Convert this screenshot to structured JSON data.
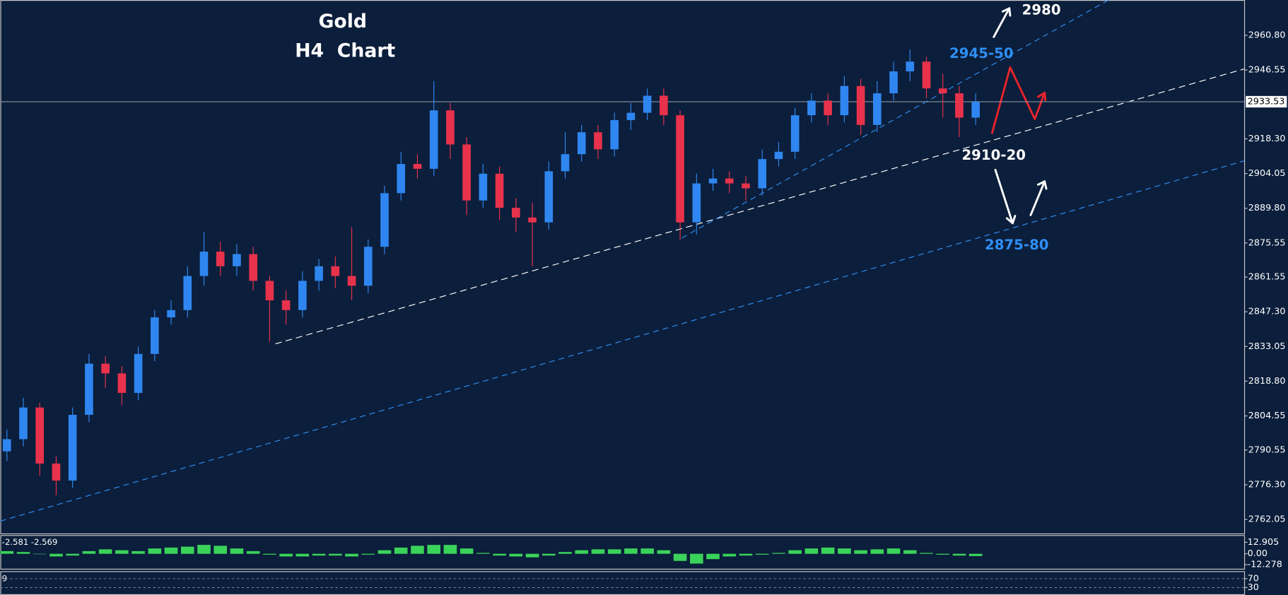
{
  "chart_data": {
    "type": "candlestick",
    "title": "Gold",
    "subtitle": "H4  Chart",
    "up_color": "#2f86f0",
    "down_color": "#e8324c",
    "open": [
      2790,
      2795,
      2808,
      2785,
      2778,
      2805,
      2826,
      2822,
      2814,
      2830,
      2845,
      2848,
      2862,
      2872,
      2866,
      2871,
      2860,
      2852,
      2848,
      2860,
      2866,
      2862,
      2858,
      2874,
      2896,
      2908,
      2906,
      2930,
      2916,
      2893,
      2904,
      2890,
      2886,
      2884,
      2905,
      2912,
      2921,
      2914,
      2926,
      2929,
      2936,
      2928,
      2884,
      2900,
      2902,
      2900,
      2898,
      2910,
      2913,
      2928,
      2934,
      2928,
      2940,
      2924,
      2937,
      2946,
      2950,
      2939,
      2937,
      2927
    ],
    "high": [
      2799,
      2812,
      2810,
      2788,
      2808,
      2830,
      2829,
      2825,
      2833,
      2848,
      2852,
      2866,
      2880,
      2876,
      2875,
      2874,
      2862,
      2856,
      2864,
      2869,
      2870,
      2882,
      2877,
      2899,
      2913,
      2912,
      2942,
      2933,
      2919,
      2908,
      2907,
      2894,
      2892,
      2909,
      2921,
      2924,
      2924,
      2929,
      2933,
      2939,
      2939,
      2930,
      2904,
      2906,
      2905,
      2903,
      2914,
      2917,
      2931,
      2937,
      2937,
      2944,
      2943,
      2942,
      2950,
      2955,
      2952,
      2945,
      2940,
      2937
    ],
    "low": [
      2786,
      2792,
      2780,
      2772,
      2775,
      2802,
      2816,
      2809,
      2811,
      2827,
      2842,
      2845,
      2858,
      2862,
      2862,
      2856,
      2835,
      2842,
      2845,
      2856,
      2857,
      2852,
      2855,
      2871,
      2893,
      2902,
      2903,
      2910,
      2887,
      2890,
      2885,
      2880,
      2866,
      2881,
      2902,
      2909,
      2910,
      2911,
      2922,
      2926,
      2924,
      2877,
      2879,
      2897,
      2896,
      2893,
      2895,
      2907,
      2910,
      2925,
      2924,
      2925,
      2920,
      2921,
      2934,
      2942,
      2935,
      2927,
      2919,
      2924
    ],
    "close": [
      2795,
      2808,
      2785,
      2778,
      2805,
      2826,
      2822,
      2814,
      2830,
      2845,
      2848,
      2862,
      2872,
      2866,
      2871,
      2860,
      2852,
      2848,
      2860,
      2866,
      2862,
      2858,
      2874,
      2896,
      2908,
      2906,
      2930,
      2916,
      2893,
      2904,
      2890,
      2886,
      2884,
      2905,
      2912,
      2921,
      2914,
      2926,
      2929,
      2936,
      2928,
      2884,
      2900,
      2902,
      2900,
      2898,
      2910,
      2913,
      2928,
      2934,
      2928,
      2940,
      2924,
      2937,
      2946,
      2950,
      2939,
      2937,
      2927,
      2933.5
    ],
    "ylim": [
      2756.3,
      2975.3
    ],
    "yticks": [
      {
        "value": 2960.8,
        "label": "2960.80"
      },
      {
        "value": 2946.55,
        "label": "2946.55"
      },
      {
        "value": 2918.3,
        "label": "2918.30"
      },
      {
        "value": 2904.05,
        "label": "2904.05"
      },
      {
        "value": 2889.8,
        "label": "2889.80"
      },
      {
        "value": 2875.55,
        "label": "2875.55"
      },
      {
        "value": 2861.55,
        "label": "2861.55"
      },
      {
        "value": 2847.3,
        "label": "2847.30"
      },
      {
        "value": 2833.05,
        "label": "2833.05"
      },
      {
        "value": 2818.8,
        "label": "2818.80"
      },
      {
        "value": 2804.55,
        "label": "2804.55"
      },
      {
        "value": 2790.55,
        "label": "2790.55"
      },
      {
        "value": 2776.3,
        "label": "2776.30"
      },
      {
        "value": 2762.05,
        "label": "2762.05"
      }
    ],
    "current_price": 2933.53,
    "annotations": [
      {
        "text": "2980",
        "color": "#ffffff"
      },
      {
        "text": "2945-50",
        "color": "#2f8ff5"
      },
      {
        "text": "2910-20",
        "color": "#ffffff"
      },
      {
        "text": "2875-80",
        "color": "#2f8ff5"
      }
    ],
    "indicators": [
      {
        "type": "bar",
        "label": "-2.581 -2.569",
        "color": "#3ad35a",
        "values": [
          3,
          2,
          0,
          -3,
          -2,
          3,
          5,
          4,
          3,
          6,
          7,
          8,
          10,
          9,
          6,
          3,
          -1,
          -3,
          -3,
          -2,
          -2,
          -3,
          -1,
          4,
          7,
          9,
          10,
          10,
          6,
          1,
          -2,
          -3,
          -4,
          -2,
          2,
          4,
          5,
          5,
          6,
          6,
          4,
          -8,
          -11,
          -6,
          -3,
          -2,
          -1,
          1,
          4,
          6,
          7,
          6,
          4,
          5,
          6,
          4,
          1,
          -1,
          -2,
          -2.581
        ],
        "ylim": [
          -16.8,
          20.1
        ],
        "yticks": [
          12.905,
          {
            "value": 0,
            "label": "0.00"
          },
          -12.278
        ]
      },
      {
        "type": "line",
        "label": "9",
        "ylim": [
          0,
          100
        ],
        "yticks": [
          70,
          30
        ]
      }
    ]
  }
}
